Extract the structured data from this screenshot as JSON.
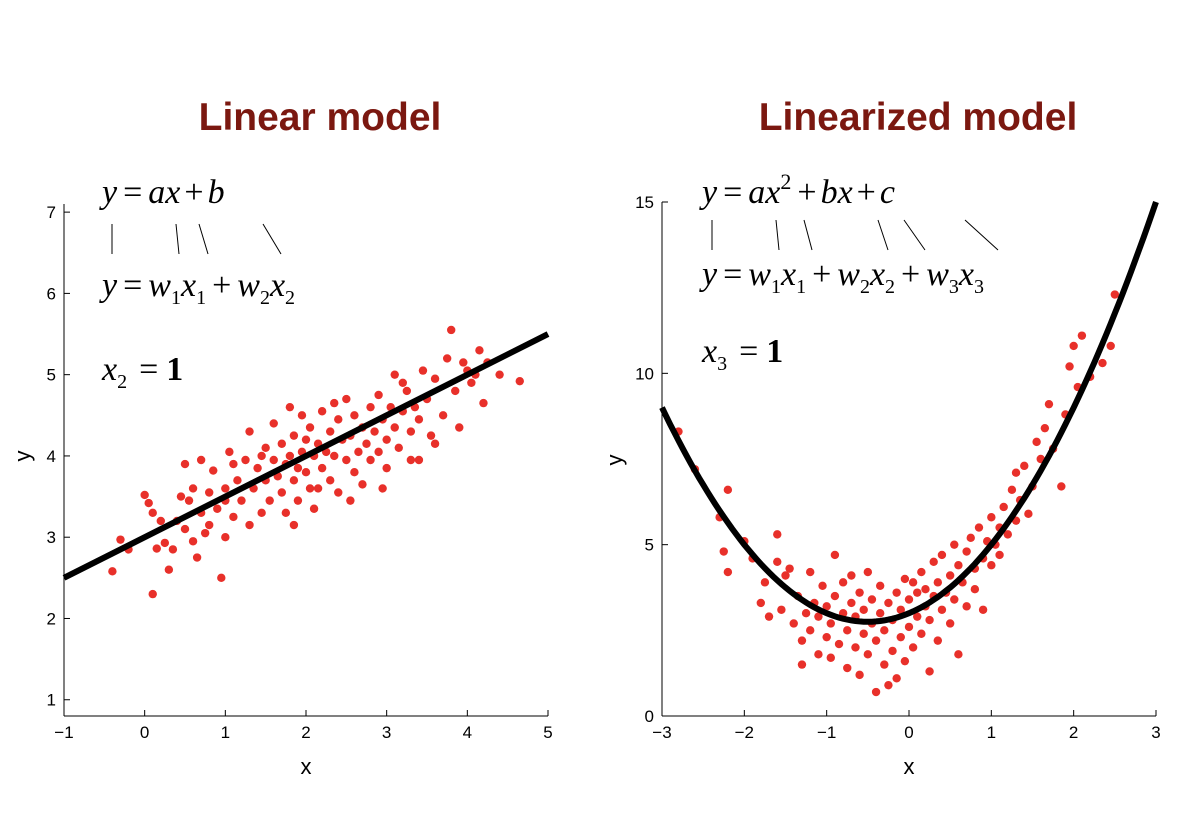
{
  "chart_data": [
    {
      "type": "scatter",
      "title": "Linear model",
      "xlabel": "x",
      "ylabel": "y",
      "xlim": [
        -1,
        5
      ],
      "ylim": [
        0.8,
        7.1
      ],
      "xticks": [
        "−1",
        "0",
        "1",
        "2",
        "3",
        "4",
        "5"
      ],
      "yticks": [
        "1",
        "2",
        "3",
        "4",
        "5",
        "6",
        "7"
      ],
      "grid": false,
      "colors": {
        "points": "#e8302a",
        "line": "#000000",
        "title": "#7b1810"
      },
      "fit_line": {
        "slope": 0.5,
        "intercept": 3.0
      },
      "equations": {
        "eq1": {
          "y": "y",
          "eq": "=",
          "a": "a",
          "x": "x",
          "plus": "+",
          "b": "b"
        },
        "eq2": {
          "y": "y",
          "eq": "=",
          "w1": "w",
          "s1": "1",
          "x1": "x",
          "s1b": "1",
          "plus": "+",
          "w2": "w",
          "s2": "2",
          "x2": "x",
          "s2b": "2"
        },
        "eq3": {
          "x": "x",
          "s": "2",
          "eq": "=",
          "one": "1"
        }
      },
      "points": [
        [
          -0.4,
          2.58
        ],
        [
          -0.3,
          2.97
        ],
        [
          -0.2,
          2.85
        ],
        [
          0.0,
          3.52
        ],
        [
          0.05,
          3.42
        ],
        [
          0.1,
          2.3
        ],
        [
          0.1,
          3.3
        ],
        [
          0.15,
          2.86
        ],
        [
          0.2,
          3.2
        ],
        [
          0.25,
          2.93
        ],
        [
          0.3,
          2.6
        ],
        [
          0.35,
          2.85
        ],
        [
          0.4,
          3.2
        ],
        [
          0.45,
          3.5
        ],
        [
          0.5,
          3.1
        ],
        [
          0.5,
          3.9
        ],
        [
          0.55,
          3.45
        ],
        [
          0.6,
          2.95
        ],
        [
          0.6,
          3.6
        ],
        [
          0.65,
          2.75
        ],
        [
          0.7,
          3.3
        ],
        [
          0.7,
          3.95
        ],
        [
          0.75,
          3.05
        ],
        [
          0.8,
          3.55
        ],
        [
          0.85,
          3.82
        ],
        [
          0.9,
          3.35
        ],
        [
          0.95,
          2.5
        ],
        [
          1.0,
          3.0
        ],
        [
          1.0,
          3.6
        ],
        [
          1.05,
          4.05
        ],
        [
          1.1,
          3.25
        ],
        [
          1.15,
          3.7
        ],
        [
          1.2,
          3.45
        ],
        [
          1.25,
          3.95
        ],
        [
          1.3,
          4.3
        ],
        [
          1.35,
          3.6
        ],
        [
          1.4,
          3.85
        ],
        [
          1.45,
          3.3
        ],
        [
          1.5,
          4.1
        ],
        [
          1.5,
          3.7
        ],
        [
          1.55,
          3.45
        ],
        [
          1.6,
          3.95
        ],
        [
          1.6,
          4.4
        ],
        [
          1.65,
          3.75
        ],
        [
          1.7,
          3.55
        ],
        [
          1.7,
          4.15
        ],
        [
          1.75,
          3.9
        ],
        [
          1.75,
          3.3
        ],
        [
          1.8,
          4.0
        ],
        [
          1.8,
          4.6
        ],
        [
          1.85,
          3.7
        ],
        [
          1.85,
          4.25
        ],
        [
          1.9,
          3.85
        ],
        [
          1.9,
          3.45
        ],
        [
          1.95,
          4.05
        ],
        [
          1.95,
          4.5
        ],
        [
          2.0,
          3.8
        ],
        [
          2.0,
          4.2
        ],
        [
          2.05,
          3.6
        ],
        [
          2.05,
          4.35
        ],
        [
          2.1,
          4.0
        ],
        [
          2.1,
          3.35
        ],
        [
          2.15,
          4.15
        ],
        [
          2.2,
          3.85
        ],
        [
          2.2,
          4.55
        ],
        [
          2.25,
          4.05
        ],
        [
          2.3,
          3.7
        ],
        [
          2.3,
          4.3
        ],
        [
          2.35,
          4.0
        ],
        [
          2.4,
          4.45
        ],
        [
          2.4,
          3.55
        ],
        [
          2.45,
          4.2
        ],
        [
          2.5,
          3.95
        ],
        [
          2.5,
          4.7
        ],
        [
          2.55,
          4.25
        ],
        [
          2.6,
          3.8
        ],
        [
          2.6,
          4.5
        ],
        [
          2.65,
          4.05
        ],
        [
          2.7,
          4.35
        ],
        [
          2.7,
          3.65
        ],
        [
          2.75,
          4.15
        ],
        [
          2.8,
          4.6
        ],
        [
          2.8,
          3.95
        ],
        [
          2.85,
          4.3
        ],
        [
          2.9,
          4.05
        ],
        [
          2.9,
          4.75
        ],
        [
          2.95,
          4.45
        ],
        [
          3.0,
          4.2
        ],
        [
          3.0,
          3.85
        ],
        [
          3.05,
          4.6
        ],
        [
          3.1,
          4.35
        ],
        [
          3.1,
          5.0
        ],
        [
          3.15,
          4.1
        ],
        [
          3.2,
          4.55
        ],
        [
          3.25,
          4.8
        ],
        [
          3.3,
          4.3
        ],
        [
          3.3,
          3.95
        ],
        [
          3.35,
          4.6
        ],
        [
          3.4,
          4.45
        ],
        [
          3.45,
          5.05
        ],
        [
          3.5,
          4.7
        ],
        [
          3.55,
          4.25
        ],
        [
          3.6,
          4.95
        ],
        [
          3.7,
          4.5
        ],
        [
          3.75,
          5.2
        ],
        [
          3.8,
          5.55
        ],
        [
          3.85,
          4.8
        ],
        [
          3.9,
          4.35
        ],
        [
          4.0,
          5.05
        ],
        [
          4.05,
          4.9
        ],
        [
          4.15,
          5.3
        ],
        [
          4.2,
          4.65
        ],
        [
          4.25,
          5.15
        ],
        [
          4.4,
          5.0
        ],
        [
          4.65,
          4.92
        ],
        [
          3.95,
          5.15
        ],
        [
          4.1,
          5.0
        ],
        [
          3.6,
          4.15
        ],
        [
          3.2,
          4.9
        ],
        [
          2.55,
          3.45
        ],
        [
          1.3,
          3.15
        ],
        [
          0.8,
          3.15
        ],
        [
          1.1,
          3.9
        ],
        [
          1.45,
          4.0
        ],
        [
          2.15,
          3.6
        ],
        [
          1.0,
          3.45
        ],
        [
          3.4,
          3.95
        ],
        [
          2.95,
          3.6
        ],
        [
          1.85,
          3.15
        ],
        [
          2.35,
          4.65
        ]
      ]
    },
    {
      "type": "scatter",
      "title": "Linearized model",
      "xlabel": "x",
      "ylabel": "y",
      "xlim": [
        -3,
        3
      ],
      "ylim": [
        0,
        15
      ],
      "xticks": [
        "−3",
        "−2",
        "−1",
        "0",
        "1",
        "2",
        "3"
      ],
      "yticks": [
        "0",
        "5",
        "10",
        "15"
      ],
      "grid": false,
      "colors": {
        "points": "#e8302a",
        "line": "#000000",
        "title": "#7b1810"
      },
      "fit_curve": {
        "a": 1.0,
        "b": 1.0,
        "c": 3.0
      },
      "equations": {
        "eq1": {
          "y": "y",
          "eq": "=",
          "a": "a",
          "x": "x",
          "sq": "2",
          "plus": "+",
          "b": "b",
          "x2": "x",
          "plus2": "+",
          "c": "c"
        },
        "eq2": {
          "y": "y",
          "eq": "=",
          "w1": "w",
          "s1": "1",
          "x1": "x",
          "s1b": "1",
          "plus": "+",
          "w2": "w",
          "s2": "2",
          "x2": "x",
          "s2b": "2",
          "plus2": "+",
          "w3": "w",
          "s3": "3",
          "x3": "x",
          "s3b": "3"
        },
        "eq3": {
          "x": "x",
          "s": "3",
          "eq": "=",
          "one": "1"
        }
      },
      "points": [
        [
          -2.8,
          8.3
        ],
        [
          -2.6,
          7.2
        ],
        [
          -2.2,
          6.6
        ],
        [
          -2.3,
          5.8
        ],
        [
          -2.25,
          4.8
        ],
        [
          -2.2,
          4.2
        ],
        [
          -2.0,
          5.1
        ],
        [
          -1.9,
          4.6
        ],
        [
          -1.8,
          3.3
        ],
        [
          -1.75,
          3.9
        ],
        [
          -1.6,
          5.3
        ],
        [
          -1.6,
          4.5
        ],
        [
          -1.55,
          3.1
        ],
        [
          -1.5,
          4.1
        ],
        [
          -1.45,
          4.3
        ],
        [
          -1.4,
          2.7
        ],
        [
          -1.35,
          3.5
        ],
        [
          -1.3,
          1.5
        ],
        [
          -1.3,
          2.2
        ],
        [
          -1.25,
          3.0
        ],
        [
          -1.2,
          4.2
        ],
        [
          -1.2,
          2.5
        ],
        [
          -1.15,
          3.3
        ],
        [
          -1.1,
          1.8
        ],
        [
          -1.1,
          2.9
        ],
        [
          -1.05,
          3.8
        ],
        [
          -1.0,
          2.3
        ],
        [
          -1.0,
          3.2
        ],
        [
          -0.95,
          1.7
        ],
        [
          -0.95,
          2.7
        ],
        [
          -0.9,
          3.5
        ],
        [
          -0.9,
          4.7
        ],
        [
          -0.85,
          2.1
        ],
        [
          -0.8,
          3.0
        ],
        [
          -0.8,
          3.9
        ],
        [
          -0.75,
          1.4
        ],
        [
          -0.75,
          2.5
        ],
        [
          -0.7,
          3.3
        ],
        [
          -0.7,
          4.1
        ],
        [
          -0.65,
          2.0
        ],
        [
          -0.65,
          2.9
        ],
        [
          -0.6,
          3.6
        ],
        [
          -0.6,
          1.2
        ],
        [
          -0.55,
          2.4
        ],
        [
          -0.55,
          3.1
        ],
        [
          -0.5,
          4.2
        ],
        [
          -0.5,
          1.8
        ],
        [
          -0.45,
          2.7
        ],
        [
          -0.45,
          3.4
        ],
        [
          -0.4,
          0.7
        ],
        [
          -0.4,
          2.2
        ],
        [
          -0.35,
          3.0
        ],
        [
          -0.35,
          3.8
        ],
        [
          -0.3,
          1.5
        ],
        [
          -0.3,
          2.5
        ],
        [
          -0.25,
          3.3
        ],
        [
          -0.2,
          1.9
        ],
        [
          -0.2,
          2.8
        ],
        [
          -0.15,
          3.6
        ],
        [
          -0.15,
          1.1
        ],
        [
          -0.1,
          2.3
        ],
        [
          -0.1,
          3.1
        ],
        [
          -0.05,
          4.0
        ],
        [
          -0.05,
          1.6
        ],
        [
          0.0,
          2.6
        ],
        [
          0.0,
          3.4
        ],
        [
          0.05,
          3.9
        ],
        [
          0.05,
          2.0
        ],
        [
          0.1,
          2.9
        ],
        [
          0.1,
          3.6
        ],
        [
          0.15,
          4.2
        ],
        [
          0.15,
          2.4
        ],
        [
          0.2,
          3.2
        ],
        [
          0.2,
          3.7
        ],
        [
          0.25,
          2.8
        ],
        [
          0.3,
          3.5
        ],
        [
          0.3,
          4.5
        ],
        [
          0.35,
          2.2
        ],
        [
          0.35,
          3.9
        ],
        [
          0.4,
          3.1
        ],
        [
          0.4,
          4.7
        ],
        [
          0.45,
          3.6
        ],
        [
          0.5,
          4.1
        ],
        [
          0.5,
          2.7
        ],
        [
          0.55,
          5.0
        ],
        [
          0.55,
          3.4
        ],
        [
          0.6,
          4.4
        ],
        [
          0.6,
          1.8
        ],
        [
          0.65,
          3.9
        ],
        [
          0.7,
          4.8
        ],
        [
          0.7,
          3.2
        ],
        [
          0.75,
          5.2
        ],
        [
          0.8,
          4.3
        ],
        [
          0.8,
          3.7
        ],
        [
          0.85,
          5.5
        ],
        [
          0.9,
          4.6
        ],
        [
          0.9,
          3.1
        ],
        [
          0.95,
          5.1
        ],
        [
          1.0,
          5.8
        ],
        [
          1.0,
          4.4
        ],
        [
          1.05,
          5.0
        ],
        [
          1.1,
          5.5
        ],
        [
          1.1,
          4.7
        ],
        [
          1.15,
          6.1
        ],
        [
          1.2,
          5.3
        ],
        [
          1.25,
          6.6
        ],
        [
          1.3,
          7.1
        ],
        [
          1.3,
          5.7
        ],
        [
          1.35,
          6.3
        ],
        [
          1.4,
          7.3
        ],
        [
          1.45,
          5.9
        ],
        [
          1.5,
          6.7
        ],
        [
          1.55,
          8.0
        ],
        [
          1.6,
          7.5
        ],
        [
          1.65,
          8.4
        ],
        [
          1.7,
          9.1
        ],
        [
          1.75,
          7.8
        ],
        [
          1.85,
          6.7
        ],
        [
          1.9,
          8.8
        ],
        [
          1.95,
          10.2
        ],
        [
          2.0,
          10.8
        ],
        [
          2.05,
          9.6
        ],
        [
          2.1,
          11.1
        ],
        [
          2.2,
          9.9
        ],
        [
          2.35,
          10.3
        ],
        [
          2.45,
          10.8
        ],
        [
          2.5,
          12.3
        ],
        [
          -1.7,
          2.9
        ],
        [
          0.25,
          1.3
        ],
        [
          -0.25,
          0.9
        ]
      ]
    }
  ]
}
